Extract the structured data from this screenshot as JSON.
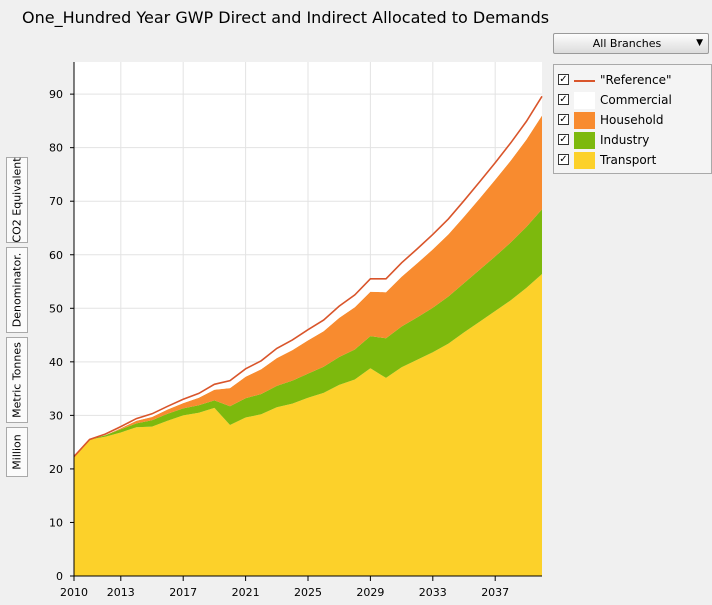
{
  "page": {
    "title": "One_Hundred Year GWP Direct and Indirect Allocated to Demands",
    "branch_selector": "All Branches",
    "side_tabs": [
      "CO2 Equivalent",
      "Denominator.",
      "Metric Tonnes",
      "Million"
    ]
  },
  "legend": {
    "items": [
      {
        "label": "\"Reference\"",
        "checked": true,
        "color": "#d9552b",
        "kind": "line"
      },
      {
        "label": "Commercial",
        "checked": true,
        "color": "#ffffff",
        "kind": "area"
      },
      {
        "label": "Household",
        "checked": true,
        "color": "#f88b2f",
        "kind": "area"
      },
      {
        "label": "Industry",
        "checked": true,
        "color": "#7db90d",
        "kind": "area"
      },
      {
        "label": "Transport",
        "checked": true,
        "color": "#fcd12a",
        "kind": "area"
      }
    ]
  },
  "chart_data": {
    "type": "area",
    "stacked": true,
    "title": "One_Hundred Year GWP Direct and Indirect Allocated to Demands",
    "ylabel": "CO2 Equivalent Denominator. Metric Tonnes Million",
    "xlim": [
      2010,
      2040
    ],
    "ylim": [
      0,
      96
    ],
    "x_ticks": [
      2010,
      2013,
      2017,
      2021,
      2025,
      2029,
      2033,
      2037
    ],
    "y_ticks": [
      0,
      10,
      20,
      30,
      40,
      50,
      60,
      70,
      80,
      90
    ],
    "grid": true,
    "legend_position": "right",
    "x": [
      2010,
      2011,
      2012,
      2013,
      2014,
      2015,
      2016,
      2017,
      2018,
      2019,
      2020,
      2021,
      2022,
      2023,
      2024,
      2025,
      2026,
      2027,
      2028,
      2029,
      2030,
      2031,
      2032,
      2033,
      2034,
      2035,
      2036,
      2037,
      2038,
      2039,
      2040
    ],
    "series": [
      {
        "name": "Transport",
        "color": "#fcd12a",
        "values": [
          22.3,
          25.5,
          26.0,
          26.8,
          27.8,
          27.9,
          29.0,
          30.0,
          30.5,
          31.4,
          28.2,
          29.6,
          30.2,
          31.5,
          32.2,
          33.3,
          34.2,
          35.7,
          36.7,
          38.8,
          37.0,
          39.0,
          40.4,
          41.8,
          43.4,
          45.5,
          47.5,
          49.5,
          51.5,
          53.8,
          56.4
        ]
      },
      {
        "name": "Industry",
        "color": "#7db90d",
        "values": [
          0.0,
          0.0,
          0.3,
          0.6,
          0.7,
          1.2,
          1.3,
          1.3,
          1.4,
          1.4,
          3.5,
          3.6,
          3.8,
          4.0,
          4.3,
          4.5,
          4.9,
          5.2,
          5.6,
          6.0,
          7.4,
          7.6,
          7.9,
          8.3,
          8.8,
          9.2,
          9.7,
          10.2,
          10.8,
          11.4,
          12.1
        ]
      },
      {
        "name": "Household",
        "color": "#f88b2f",
        "values": [
          0.0,
          0.0,
          0.0,
          0.2,
          0.5,
          0.6,
          0.8,
          1.0,
          1.4,
          2.0,
          3.4,
          4.0,
          4.6,
          5.2,
          5.7,
          6.2,
          6.6,
          7.3,
          7.9,
          8.3,
          8.6,
          9.3,
          10.1,
          10.9,
          11.6,
          12.4,
          13.3,
          14.3,
          15.3,
          16.3,
          17.5
        ]
      },
      {
        "name": "Commercial",
        "color": "#ffffff",
        "values": [
          0.0,
          0.0,
          0.2,
          0.3,
          0.4,
          0.6,
          0.6,
          0.7,
          0.8,
          1.0,
          1.4,
          1.5,
          1.6,
          1.8,
          1.9,
          2.0,
          2.1,
          2.2,
          2.3,
          2.4,
          2.5,
          2.6,
          2.7,
          2.8,
          2.9,
          3.0,
          3.1,
          3.2,
          3.3,
          3.4,
          3.6
        ]
      }
    ],
    "reference": {
      "name": "\"Reference\"",
      "color": "#d9552b",
      "values": [
        22.3,
        25.5,
        26.5,
        27.9,
        29.4,
        30.3,
        31.7,
        33.0,
        34.1,
        35.8,
        36.5,
        38.7,
        40.2,
        42.5,
        44.1,
        46.0,
        47.8,
        50.4,
        52.5,
        55.5,
        55.5,
        58.5,
        61.1,
        63.8,
        66.7,
        70.1,
        73.6,
        77.2,
        80.9,
        84.9,
        89.6
      ]
    }
  }
}
